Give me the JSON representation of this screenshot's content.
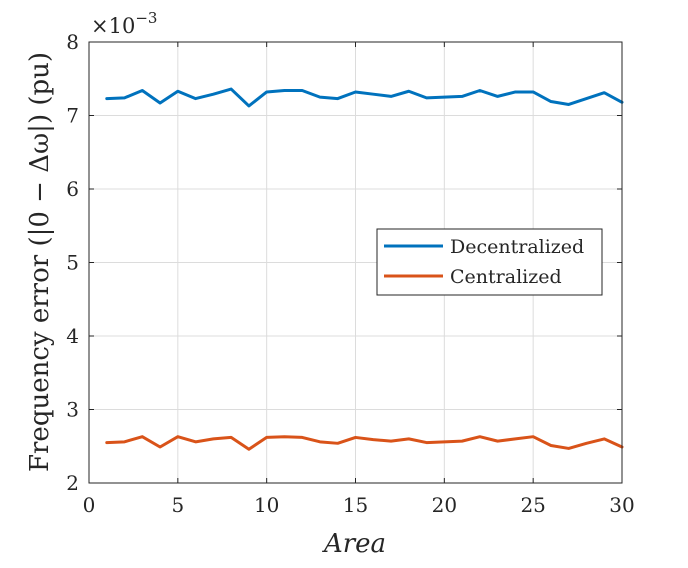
{
  "chart_data": {
    "type": "line",
    "xlabel": "Area",
    "ylabel": "Frequency error (|0 − Δω|) (pu)",
    "y_exponent_label": "×10",
    "y_exponent_power": "−3",
    "xlim": [
      0,
      30
    ],
    "ylim": [
      2,
      8
    ],
    "y_scale_factor": 0.001,
    "xticks": [
      0,
      5,
      10,
      15,
      20,
      25,
      30
    ],
    "yticks": [
      2,
      3,
      4,
      5,
      6,
      7,
      8
    ],
    "grid": true,
    "legend_position": "right",
    "x": [
      1,
      2,
      3,
      4,
      5,
      6,
      7,
      8,
      9,
      10,
      11,
      12,
      13,
      14,
      15,
      16,
      17,
      18,
      19,
      20,
      21,
      22,
      23,
      24,
      25,
      26,
      27,
      28,
      29,
      30
    ],
    "series": [
      {
        "name": "Decentralized",
        "color": "#0072BD",
        "values": [
          7.23,
          7.24,
          7.34,
          7.17,
          7.33,
          7.23,
          7.29,
          7.36,
          7.13,
          7.32,
          7.34,
          7.34,
          7.25,
          7.23,
          7.32,
          7.29,
          7.26,
          7.33,
          7.24,
          7.25,
          7.26,
          7.34,
          7.26,
          7.32,
          7.32,
          7.19,
          7.15,
          7.23,
          7.31,
          7.18
        ]
      },
      {
        "name": "Centralized",
        "color": "#D95319",
        "values": [
          2.55,
          2.56,
          2.63,
          2.49,
          2.63,
          2.56,
          2.6,
          2.62,
          2.46,
          2.62,
          2.63,
          2.62,
          2.56,
          2.54,
          2.62,
          2.59,
          2.57,
          2.6,
          2.55,
          2.56,
          2.57,
          2.63,
          2.57,
          2.6,
          2.63,
          2.51,
          2.47,
          2.54,
          2.6,
          2.49
        ]
      }
    ]
  }
}
